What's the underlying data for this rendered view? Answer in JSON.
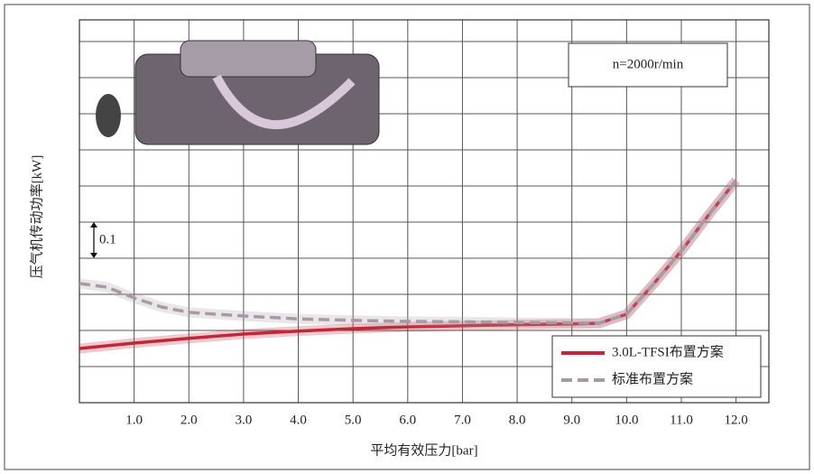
{
  "chart_data": {
    "type": "line",
    "y_label": "压气机传动功率[kW]",
    "x_label": "平均有效压力[bar]",
    "annotation": "n=2000r/min",
    "scale_bar": {
      "value": 0.1,
      "label": "0.1"
    },
    "xlim": [
      0,
      12.6
    ],
    "ylim": [
      0,
      1.06
    ],
    "xticks": [
      {
        "value": 1,
        "label": "1.0"
      },
      {
        "value": 2,
        "label": "2.0"
      },
      {
        "value": 3,
        "label": "3.0"
      },
      {
        "value": 4,
        "label": "4.0"
      },
      {
        "value": 5,
        "label": "5.0"
      },
      {
        "value": 6,
        "label": "6.0"
      },
      {
        "value": 7,
        "label": "7.0"
      },
      {
        "value": 8,
        "label": "8.0"
      },
      {
        "value": 9,
        "label": "9.0"
      },
      {
        "value": 10,
        "label": "10.0"
      },
      {
        "value": 11,
        "label": "11.0"
      },
      {
        "value": 12,
        "label": "12.0"
      }
    ],
    "grid": true,
    "legend": "lower right",
    "series": [
      {
        "name": "3.0L-TFSI布置方案",
        "color": "#c0283a",
        "dash": false,
        "x": [
          0,
          1,
          2,
          3,
          4,
          5,
          6,
          7,
          8,
          9,
          9.5,
          10,
          10.5,
          11,
          11.5,
          12
        ],
        "values": [
          0.15,
          0.165,
          0.178,
          0.19,
          0.198,
          0.205,
          0.21,
          0.213,
          0.216,
          0.218,
          0.22,
          0.245,
          0.33,
          0.42,
          0.52,
          0.615
        ]
      },
      {
        "name": "标准布置方案",
        "color": "#a89aa4",
        "dash": true,
        "x": [
          0,
          0.5,
          1,
          1.5,
          2,
          3,
          4,
          5,
          6,
          7,
          8,
          9,
          9.5,
          10,
          10.5,
          11,
          11.5,
          12
        ],
        "values": [
          0.33,
          0.32,
          0.29,
          0.265,
          0.25,
          0.24,
          0.232,
          0.228,
          0.225,
          0.224,
          0.222,
          0.221,
          0.22,
          0.245,
          0.33,
          0.42,
          0.52,
          0.615
        ]
      }
    ]
  }
}
